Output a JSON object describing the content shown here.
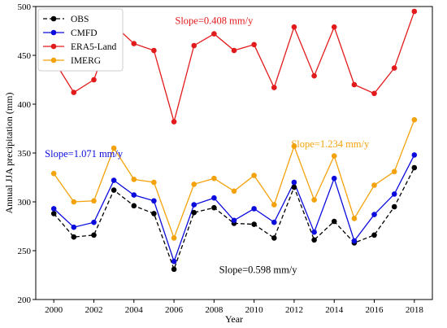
{
  "chart_data": {
    "type": "line",
    "title": "",
    "xlabel": "Year",
    "ylabel": "Annual JJA precipitation (mm)",
    "xlim": [
      1999.1,
      2018.9
    ],
    "ylim": [
      200,
      500
    ],
    "xticks": [
      2000,
      2002,
      2004,
      2006,
      2008,
      2010,
      2012,
      2014,
      2016,
      2018
    ],
    "yticks": [
      200,
      250,
      300,
      350,
      400,
      450,
      500
    ],
    "grid": false,
    "legend_position": "top-left",
    "x": [
      2000,
      2001,
      2002,
      2003,
      2004,
      2005,
      2006,
      2007,
      2008,
      2009,
      2010,
      2011,
      2012,
      2013,
      2014,
      2015,
      2016,
      2017,
      2018
    ],
    "series": [
      {
        "name": "OBS",
        "color": "#000000",
        "line_style": "dashed",
        "values": [
          288,
          264,
          266,
          312,
          296,
          288,
          231,
          289,
          294,
          278,
          277,
          263,
          315,
          261,
          280,
          258,
          266,
          295,
          335
        ]
      },
      {
        "name": "CMFD",
        "color": "#0b0bde",
        "line_style": "solid",
        "values": [
          293,
          274,
          279,
          322,
          307,
          301,
          239,
          297,
          304,
          281,
          293,
          279,
          320,
          269,
          324,
          260,
          287,
          308,
          348
        ]
      },
      {
        "name": "ERA5-Land",
        "color": "#e31a1c",
        "line_style": "solid",
        "values": [
          445,
          412,
          425,
          481,
          462,
          455,
          382,
          460,
          472,
          455,
          461,
          417,
          479,
          429,
          479,
          420,
          411,
          437,
          495
        ]
      },
      {
        "name": "IMERG",
        "color": "#f4a20b",
        "line_style": "solid",
        "values": [
          329,
          300,
          301,
          355,
          323,
          320,
          263,
          318,
          324,
          311,
          327,
          297,
          357,
          302,
          347,
          283,
          317,
          331,
          384
        ]
      }
    ],
    "annotations": [
      {
        "text": "Slope=0.408 mm/y",
        "color": "#e31a1c",
        "x": 2008.0,
        "y": 482
      },
      {
        "text": "Slope=1.234 mm/y",
        "color": "#f4a20b",
        "x": 2013.8,
        "y": 356
      },
      {
        "text": "Slope=1.071 mm/y",
        "color": "#0b0bde",
        "x": 2001.5,
        "y": 346
      },
      {
        "text": "Slope=0.598 mm/y",
        "color": "#000000",
        "x": 2010.2,
        "y": 227
      }
    ]
  }
}
